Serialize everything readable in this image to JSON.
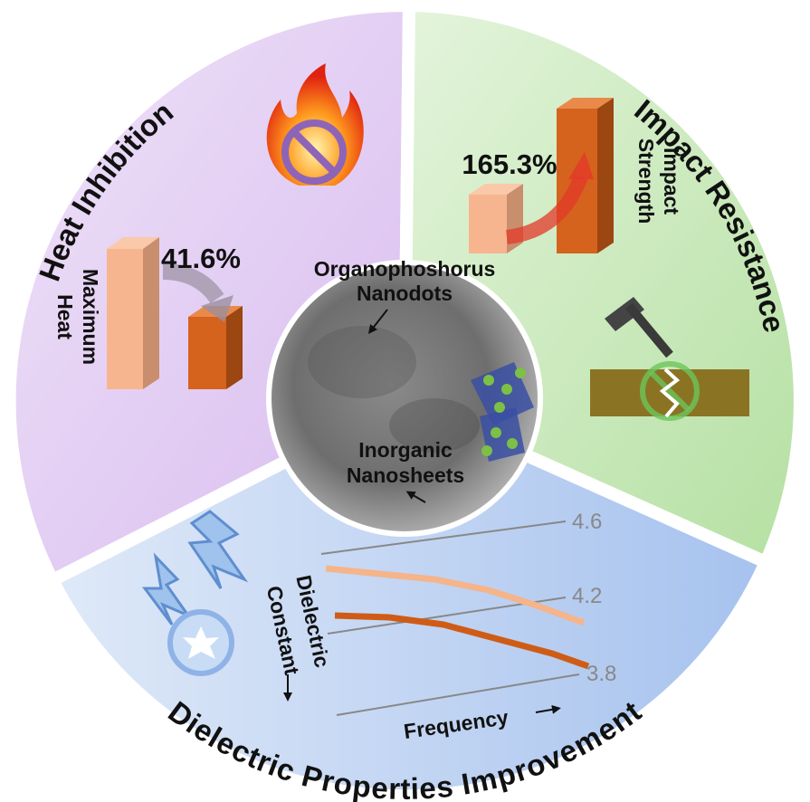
{
  "heat_inhibition": {
    "title": "Heat Inhibition",
    "change": "41.6%",
    "label_lines": [
      "Maximum",
      "Heat"
    ]
  },
  "impact_resistance": {
    "title": "Impact Resistance",
    "change": "165.3%",
    "label_lines": [
      "Impact",
      "Strength"
    ]
  },
  "dielectric": {
    "title": "Dielectric Properties Improvement",
    "y_label_lines": [
      "Dielectric",
      "Constant"
    ],
    "x_label": "Frequency",
    "ticks": [
      "4.6",
      "4.2",
      "3.8"
    ]
  },
  "center": {
    "top_label_lines": [
      "Organophoshorus",
      "Nanodots"
    ],
    "bottom_label_lines": [
      "Inorganic",
      "Nanosheets"
    ]
  }
}
